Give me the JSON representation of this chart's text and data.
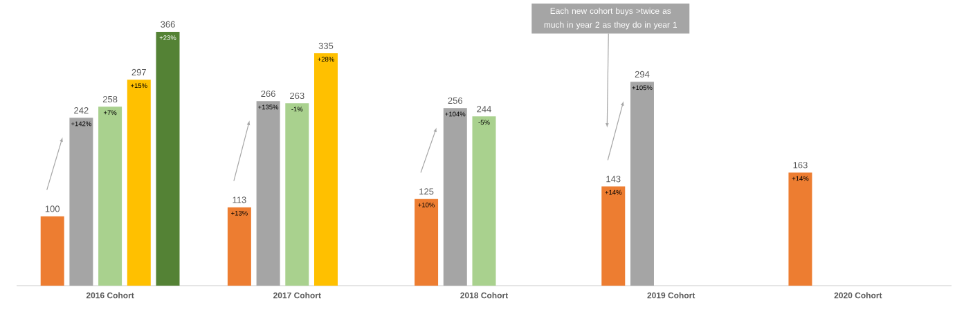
{
  "chart_data": {
    "type": "bar",
    "categories": [
      "2016 Cohort",
      "2017 Cohort",
      "2018 Cohort",
      "2019 Cohort",
      "2020 Cohort"
    ],
    "series": [
      {
        "color": "#ed7d31",
        "values": [
          100,
          113,
          125,
          143,
          163
        ]
      },
      {
        "color": "#a5a5a5",
        "values": [
          242,
          266,
          256,
          294,
          null
        ]
      },
      {
        "color": "#a9d18e",
        "values": [
          258,
          263,
          244,
          null,
          null
        ]
      },
      {
        "color": "#ffc000",
        "values": [
          297,
          335,
          null,
          null,
          null
        ]
      },
      {
        "color": "#548235",
        "values": [
          366,
          null,
          null,
          null,
          null
        ]
      }
    ],
    "tick_labels": "x",
    "data_labels": true,
    "annotations": [
      "+142%",
      "+7%",
      "+15%",
      "+23%",
      "+13%",
      "+135%",
      "-1%",
      "+28%",
      "+10%",
      "+104%",
      "-5%",
      "+14%",
      "+105%",
      "+14%",
      "Each new cohort buys >twice as much in year 2 as they do in year 1"
    ]
  }
}
